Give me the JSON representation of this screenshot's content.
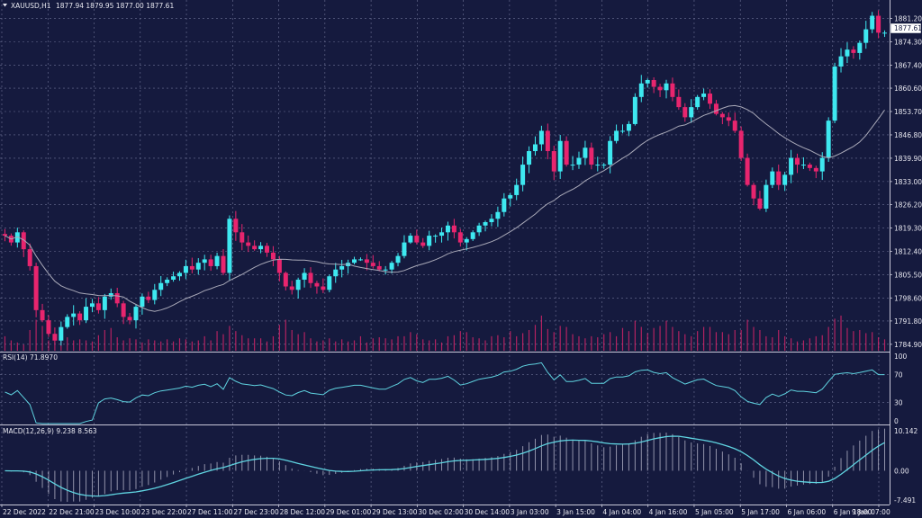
{
  "header": {
    "symbol_label": "XAUUSD,H1",
    "ohlc_label": "1877.94 1879.95 1877.00 1877.61"
  },
  "price_axis": {
    "labels": [
      "1881.20",
      "1874.30",
      "1867.40",
      "1860.60",
      "1853.70",
      "1846.80",
      "1839.90",
      "1833.00",
      "1826.20",
      "1819.30",
      "1812.40",
      "1805.50",
      "1798.60",
      "1791.80",
      "1784.90"
    ],
    "current_price": "1877.61"
  },
  "rsi": {
    "label": "RSI(14) 71.8970",
    "levels": [
      "100",
      "70",
      "30",
      "0"
    ]
  },
  "macd": {
    "label": "MACD(12,26,9) 9.238 8.563",
    "levels": [
      "10.142",
      "0.00",
      "-7.491"
    ]
  },
  "time_axis": {
    "labels": [
      "22 Dec 2022",
      "22 Dec 21:00",
      "23 Dec 10:00",
      "23 Dec 22:00",
      "27 Dec 11:00",
      "27 Dec 23:00",
      "28 Dec 12:00",
      "29 Dec 01:00",
      "29 Dec 13:00",
      "30 Dec 02:00",
      "30 Dec 14:00",
      "3 Jan 03:00",
      "3 Jan 15:00",
      "4 Jan 04:00",
      "4 Jan 16:00",
      "5 Jan 05:00",
      "5 Jan 17:00",
      "6 Jan 06:00",
      "6 Jan 18:00",
      "9 Jan 07:00"
    ]
  },
  "colors": {
    "background": "#151a3e",
    "bull": "#3ee8f0",
    "bear": "#e8256e",
    "ma": "#a9a9b8",
    "rsi_line": "#5fd3e0",
    "macd_line": "#5fd3e0",
    "macd_hist": "#c8c8d8"
  },
  "chart_data": {
    "type": "candlestick",
    "title": "XAUUSD,H1",
    "ylim": [
      1783.0,
      1884.0
    ],
    "close": [
      1817,
      1815,
      1818,
      1813,
      1808,
      1795,
      1792,
      1788,
      1786,
      1790,
      1793,
      1794,
      1792,
      1796,
      1797,
      1795,
      1799,
      1800,
      1797,
      1793,
      1792,
      1796,
      1799,
      1798,
      1801,
      1803,
      1804,
      1805,
      1806,
      1808,
      1807,
      1809,
      1810,
      1808,
      1811,
      1806,
      1822,
      1818,
      1815,
      1814,
      1813,
      1814,
      1812,
      1810,
      1806,
      1802,
      1801,
      1804,
      1806,
      1803,
      1802,
      1801,
      1805,
      1807,
      1808,
      1809,
      1810,
      1810,
      1809,
      1808,
      1807,
      1807,
      1809,
      1811,
      1815,
      1817,
      1815,
      1814,
      1817,
      1817,
      1818,
      1820,
      1818,
      1815,
      1816,
      1818,
      1820,
      1821,
      1822,
      1824,
      1828,
      1829,
      1832,
      1838,
      1842,
      1844,
      1848,
      1842,
      1836,
      1845,
      1838,
      1838,
      1840,
      1843,
      1838,
      1838,
      1838,
      1845,
      1848,
      1848,
      1850,
      1858,
      1862,
      1863,
      1861,
      1860,
      1862,
      1858,
      1855,
      1852,
      1855,
      1858,
      1859,
      1856,
      1853,
      1852,
      1851,
      1848,
      1840,
      1832,
      1828,
      1825,
      1832,
      1836,
      1832,
      1835,
      1840,
      1838,
      1838,
      1837,
      1836,
      1840,
      1851,
      1867,
      1870,
      1872,
      1871,
      1874,
      1878,
      1882,
      1877,
      1877
    ],
    "volume": [
      14,
      10,
      8,
      6,
      20,
      30,
      24,
      10,
      8,
      11,
      13,
      10,
      11,
      10,
      9,
      15,
      20,
      22,
      13,
      10,
      12,
      11,
      8,
      11,
      10,
      9,
      11,
      9,
      12,
      11,
      9,
      10,
      14,
      10,
      19,
      16,
      24,
      19,
      15,
      12,
      12,
      12,
      9,
      14,
      25,
      30,
      20,
      16,
      18,
      12,
      9,
      10,
      12,
      9,
      11,
      9,
      10,
      14,
      8,
      12,
      13,
      12,
      11,
      14,
      14,
      18,
      16,
      11,
      10,
      11,
      8,
      14,
      15,
      19,
      18,
      13,
      12,
      10,
      14,
      15,
      13,
      19,
      14,
      17,
      20,
      25,
      34,
      21,
      18,
      24,
      23,
      16,
      14,
      12,
      14,
      13,
      16,
      18,
      14,
      22,
      19,
      29,
      23,
      17,
      22,
      24,
      29,
      23,
      19,
      16,
      14,
      19,
      23,
      23,
      18,
      18,
      16,
      20,
      20,
      30,
      23,
      20,
      14,
      13,
      20,
      14,
      12,
      9,
      10,
      12,
      14,
      15,
      23,
      31,
      34,
      22,
      19,
      20,
      17,
      18,
      13,
      11
    ],
    "ma_period": 20,
    "indicators": {
      "rsi": {
        "period": 14,
        "last": 71.897,
        "range": [
          0,
          100
        ],
        "levels": [
          30,
          70
        ]
      },
      "macd": {
        "fast": 12,
        "slow": 26,
        "signal": 9,
        "last_macd": 9.238,
        "last_signal": 8.563,
        "range": [
          -7.491,
          10.142
        ]
      }
    }
  }
}
